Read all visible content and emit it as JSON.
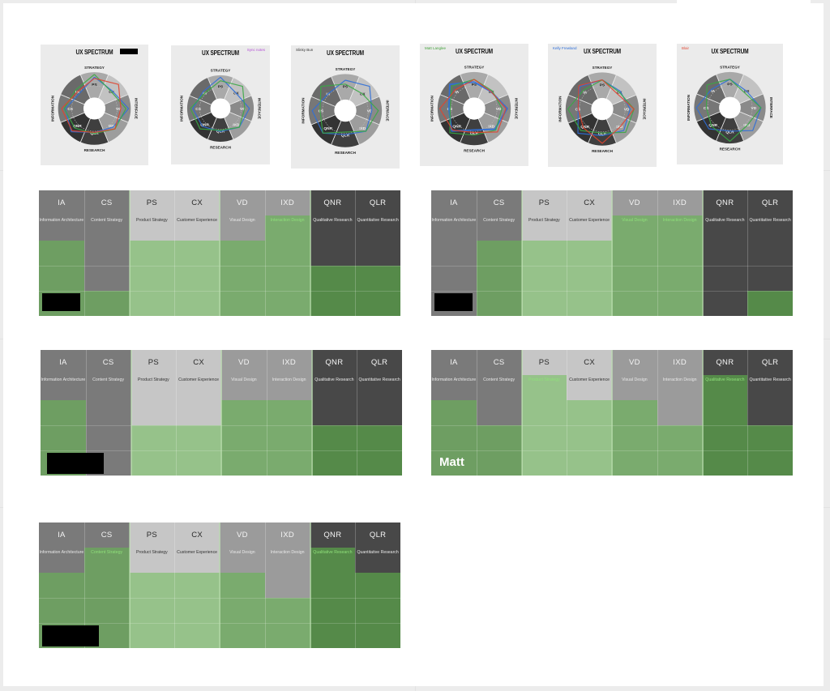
{
  "colors": {
    "cat1": "#7a7a7a",
    "cat2": "#c6c6c6",
    "cat3": "#9b9b9b",
    "cat4": "#484848",
    "green1": "#6e9e62",
    "green2": "#96c28a",
    "green3": "#7aab6e",
    "green4": "#558a49",
    "subtext_green": "#8fe07a"
  },
  "spectrum_cards": [
    {
      "title": "UX SPECTRUM",
      "note": ""
    },
    {
      "title": "UX SPECTRUM",
      "note": "Sync notes"
    },
    {
      "title": "UX SPECTRUM",
      "note": "Slinky Bun"
    },
    {
      "title": "UX SPECTRUM",
      "note": "Matt Langlee"
    },
    {
      "title": "UX SPECTRUM",
      "note": "Kelly Frewland"
    },
    {
      "title": "UX SPECTRUM",
      "note": "Blair"
    }
  ],
  "wheel_labels": {
    "top": "STRATEGY",
    "bottom": "RESEARCH",
    "left": "INFORMATION",
    "right": "INTERFACE",
    "segments": [
      "PS",
      "CX",
      "VD",
      "IXD",
      "QLR",
      "QNR",
      "CS",
      "IA"
    ]
  },
  "columns": [
    {
      "abbr": "IA",
      "name": "Information Architecture",
      "cat": "cat1"
    },
    {
      "abbr": "CS",
      "name": "Content Strategy",
      "cat": "cat1"
    },
    {
      "abbr": "PS",
      "name": "Product Strategy",
      "cat": "cat2"
    },
    {
      "abbr": "CX",
      "name": "Customer Experience",
      "cat": "cat2"
    },
    {
      "abbr": "VD",
      "name": "Visual Design",
      "cat": "cat3"
    },
    {
      "abbr": "IXD",
      "name": "Interaction Design",
      "cat": "cat3"
    },
    {
      "abbr": "QNR",
      "name": "Qualitative Research",
      "cat": "cat4"
    },
    {
      "abbr": "QLR",
      "name": "Quantitative Research",
      "cat": "cat4"
    }
  ],
  "matrices": [
    {
      "owner": "",
      "levels": [
        3,
        1,
        3,
        3,
        3,
        3,
        2,
        2
      ],
      "green_sub": [
        5
      ],
      "redacted": true
    },
    {
      "owner": "",
      "levels": [
        0,
        3,
        3,
        3,
        3,
        3,
        0,
        1
      ],
      "green_sub": [
        4,
        5
      ],
      "redacted": true
    },
    {
      "owner": "",
      "levels": [
        3,
        0,
        2,
        2,
        3,
        3,
        2,
        2
      ],
      "green_sub": [],
      "redacted": true
    },
    {
      "owner": "Matt",
      "levels": [
        3,
        2,
        3,
        3,
        3,
        2,
        3,
        2
      ],
      "green_sub": [
        2,
        6
      ],
      "redacted": false
    },
    {
      "owner": "",
      "levels": [
        3,
        3,
        3,
        3,
        3,
        2,
        3,
        3
      ],
      "green_sub": [
        1,
        6
      ],
      "redacted": true
    }
  ]
}
